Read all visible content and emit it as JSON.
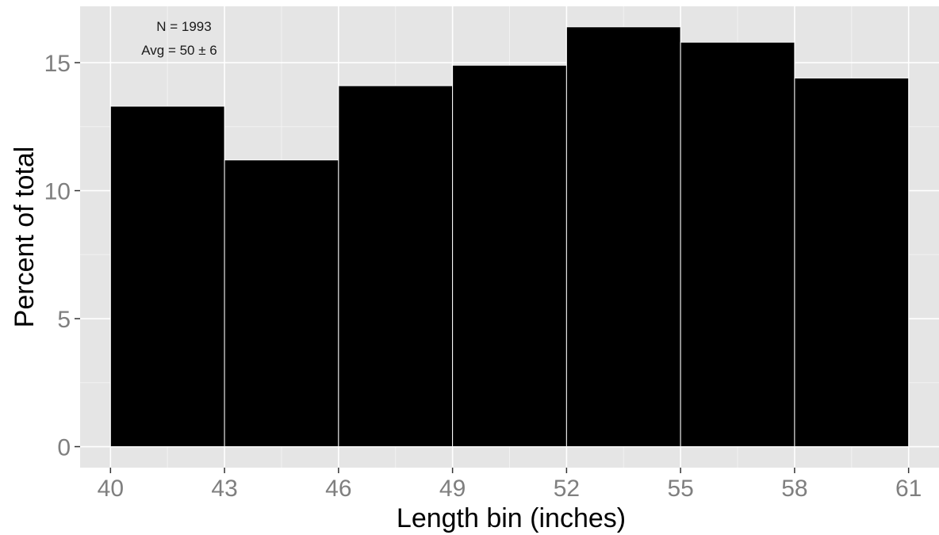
{
  "chart_data": {
    "type": "bar",
    "xlabel": "Length bin (inches)",
    "ylabel": "Percent of total",
    "annotations": [
      "N = 1993",
      "Avg = 50 ± 6"
    ],
    "bin_edges": [
      40,
      43,
      46,
      49,
      52,
      55,
      58,
      61
    ],
    "values": [
      13.3,
      11.2,
      14.1,
      14.9,
      16.4,
      15.8,
      14.4
    ],
    "x_ticks": [
      40,
      43,
      46,
      49,
      52,
      55,
      58,
      61
    ],
    "x_tick_labels": [
      "40",
      "43",
      "46",
      "49",
      "52",
      "55",
      "58",
      "61"
    ],
    "y_ticks": [
      0,
      5,
      10,
      15
    ],
    "y_tick_labels": [
      "0",
      "5",
      "10",
      "15"
    ],
    "xlim": [
      39.2,
      61.8
    ],
    "ylim": [
      -0.82,
      17.2
    ],
    "grid": true,
    "colors": {
      "panel": "#e5e5e5",
      "grid_major": "#ffffff",
      "grid_minor": "#f2f2f2",
      "bar_fill": "#000000",
      "bar_outline": "#ffffff",
      "tick": "#333333"
    }
  }
}
